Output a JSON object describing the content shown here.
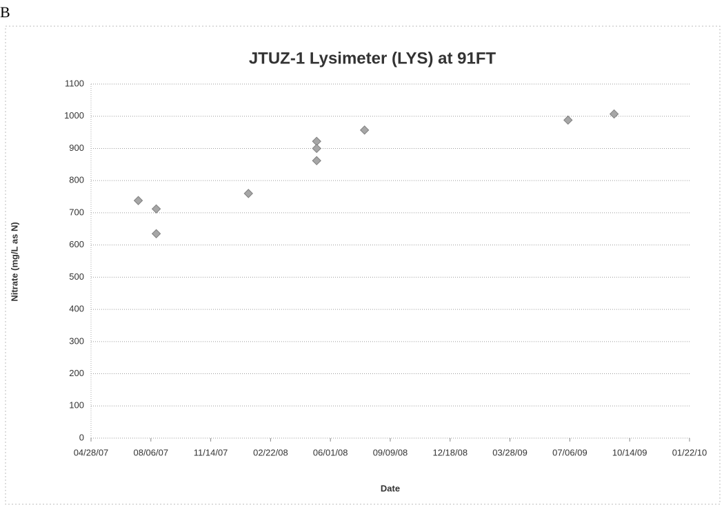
{
  "panel_label": "B",
  "chart_data": {
    "type": "scatter",
    "title": "JTUZ-1 Lysimeter (LYS) at 91FT",
    "x_label": "Date",
    "y_label": "Nitrate (mg/L as N)",
    "x": [
      "2007-07-16",
      "2007-08-15",
      "2007-08-15",
      "2008-01-16",
      "2008-05-09",
      "2008-05-09",
      "2008-05-09",
      "2008-07-28",
      "2009-07-03",
      "2009-09-18"
    ],
    "values": [
      738,
      712,
      635,
      760,
      922,
      900,
      862,
      957,
      988,
      1007
    ],
    "color": "#a6a6a6",
    "xlim": [
      "2007-04-28",
      "2010-01-22"
    ],
    "xticks": [
      {
        "value": "2007-04-28",
        "label": "04/28/07"
      },
      {
        "value": "2007-08-06",
        "label": "08/06/07"
      },
      {
        "value": "2007-11-14",
        "label": "11/14/07"
      },
      {
        "value": "2008-02-22",
        "label": "02/22/08"
      },
      {
        "value": "2008-06-01",
        "label": "06/01/08"
      },
      {
        "value": "2008-09-09",
        "label": "09/09/08"
      },
      {
        "value": "2008-12-18",
        "label": "12/18/08"
      },
      {
        "value": "2009-03-28",
        "label": "03/28/09"
      },
      {
        "value": "2009-07-06",
        "label": "07/06/09"
      },
      {
        "value": "2009-10-14",
        "label": "10/14/09"
      },
      {
        "value": "2010-01-22",
        "label": "01/22/10"
      }
    ],
    "ylim": [
      0,
      1100
    ],
    "yticks": [
      0,
      100,
      200,
      300,
      400,
      500,
      600,
      700,
      800,
      900,
      1000,
      1100
    ],
    "grid": true
  }
}
